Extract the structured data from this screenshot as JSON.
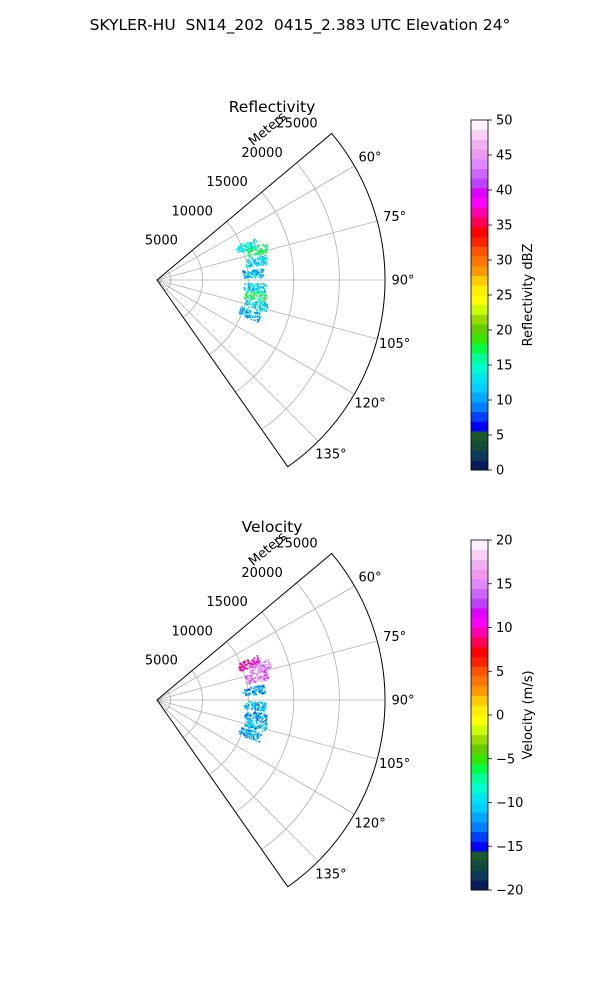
{
  "figure_title": "SKYLER-HU  SN14_202  0415_2.383 UTC Elevation 24°",
  "chart_data": [
    {
      "type": "polar sector scatter",
      "title": "Reflectivity",
      "range_label": "Meters",
      "range_ticks": [
        5000,
        10000,
        15000,
        20000,
        25000
      ],
      "angle_ticks": [
        "60°",
        "75°",
        "90°",
        "105°",
        "120°",
        "135°"
      ],
      "angle_range_deg": [
        50,
        145
      ],
      "range_max_m": 25000,
      "grid": true,
      "colorbar": {
        "label": "Reflectivity dBZ",
        "min": 0,
        "max": 50,
        "ticks": [
          0,
          5,
          10,
          15,
          20,
          25,
          30,
          35,
          40,
          45,
          50
        ],
        "colors": [
          "#081c5c",
          "#0e3a5a",
          "#134a3a",
          "#1a5a2a",
          "#0000ff",
          "#0040ff",
          "#0080ff",
          "#00a8ff",
          "#00d0ff",
          "#00e6f0",
          "#00ffcc",
          "#00ff99",
          "#00ff44",
          "#33e600",
          "#66cc00",
          "#99dd00",
          "#ccff00",
          "#ffff00",
          "#ffee00",
          "#ffcc00",
          "#ff9900",
          "#ff7700",
          "#ff5500",
          "#ff2200",
          "#ff0000",
          "#ff0055",
          "#ff00aa",
          "#ff00ff",
          "#dd00ff",
          "#c040ff",
          "#cc66ff",
          "#dd88ff",
          "#ee99ee",
          "#f0b0f0",
          "#f8d0f8",
          "#fff0ff"
        ]
      },
      "clusters": [
        {
          "azimuth_deg": 69,
          "range_m": 10500,
          "value": 13
        },
        {
          "azimuth_deg": 73,
          "range_m": 11500,
          "value": 17
        },
        {
          "azimuth_deg": 79,
          "range_m": 11000,
          "value": 12
        },
        {
          "azimuth_deg": 86,
          "range_m": 10600,
          "value": 11
        },
        {
          "azimuth_deg": 94,
          "range_m": 10700,
          "value": 12
        },
        {
          "azimuth_deg": 99,
          "range_m": 10900,
          "value": 17
        },
        {
          "azimuth_deg": 104,
          "range_m": 11200,
          "value": 12
        },
        {
          "azimuth_deg": 110,
          "range_m": 10800,
          "value": 11
        }
      ]
    },
    {
      "type": "polar sector scatter",
      "title": "Velocity",
      "range_label": "Meters",
      "range_ticks": [
        5000,
        10000,
        15000,
        20000,
        25000
      ],
      "angle_ticks": [
        "60°",
        "75°",
        "90°",
        "105°",
        "120°",
        "135°"
      ],
      "angle_range_deg": [
        50,
        145
      ],
      "range_max_m": 25000,
      "grid": true,
      "colorbar": {
        "label": "Velocity (m/s)",
        "min": -20,
        "max": 20,
        "ticks": [
          -20,
          -15,
          -10,
          -5,
          0,
          5,
          10,
          15,
          20
        ],
        "colors": [
          "#081c5c",
          "#0e3a5a",
          "#134a3a",
          "#1a5a2a",
          "#0000ff",
          "#0040ff",
          "#0080ff",
          "#00a8ff",
          "#00d0ff",
          "#00e6f0",
          "#00ffcc",
          "#00ff99",
          "#00ff44",
          "#33e600",
          "#66cc00",
          "#99dd00",
          "#ccff00",
          "#ffff00",
          "#ffee00",
          "#ffcc00",
          "#ff9900",
          "#ff7700",
          "#ff5500",
          "#ff2200",
          "#ff0000",
          "#ff0055",
          "#ff00aa",
          "#ff00ff",
          "#dd00ff",
          "#c040ff",
          "#cc66ff",
          "#dd88ff",
          "#ee99ee",
          "#f0b0f0",
          "#f8d0f8",
          "#fff0ff"
        ]
      },
      "clusters": [
        {
          "azimuth_deg": 68,
          "range_m": 10800,
          "value": 10
        },
        {
          "azimuth_deg": 72,
          "range_m": 11800,
          "value": 15
        },
        {
          "azimuth_deg": 77,
          "range_m": 11200,
          "value": 14
        },
        {
          "azimuth_deg": 84,
          "range_m": 10600,
          "value": -12
        },
        {
          "azimuth_deg": 93,
          "range_m": 10700,
          "value": -11
        },
        {
          "azimuth_deg": 99,
          "range_m": 10900,
          "value": -12
        },
        {
          "azimuth_deg": 104,
          "range_m": 11100,
          "value": -11
        },
        {
          "azimuth_deg": 110,
          "range_m": 10800,
          "value": -12
        }
      ]
    }
  ]
}
